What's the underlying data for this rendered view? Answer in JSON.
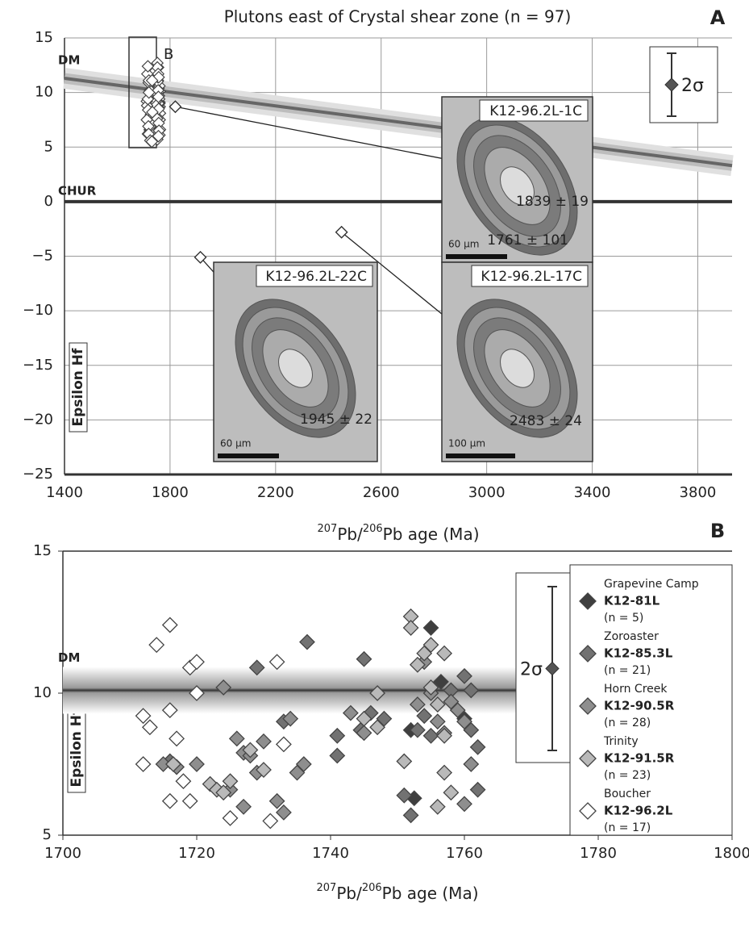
{
  "chart_data": [
    {
      "type": "scatter",
      "title": "Plutons east of Crystal shear zone (n = 97)",
      "panel": "A",
      "xlabel": [
        "207",
        "Pb/",
        "206",
        "Pb age (Ma)"
      ],
      "ylabel": "Epsilon Hf",
      "xlim": [
        1400,
        3930
      ],
      "ylim": [
        -25,
        15
      ],
      "xticks": [
        1400,
        1800,
        2200,
        2600,
        3000,
        3400,
        3800
      ],
      "yticks": [
        {
          "value": -25,
          "label": "−25"
        },
        {
          "value": -20,
          "label": "−20"
        },
        {
          "value": -15,
          "label": "−15"
        },
        {
          "value": -10,
          "label": "−10"
        },
        {
          "value": -5,
          "label": "−5"
        },
        0,
        5,
        10,
        15
      ],
      "grid": true,
      "x": [
        1820,
        1915,
        2450
      ],
      "values": [
        8.7,
        -5.1,
        -2.8
      ],
      "color": "#ffffff",
      "reference_lines": [
        {
          "label": "DM",
          "x": [
            1400,
            3930
          ],
          "y": [
            11.3,
            3.3
          ]
        },
        {
          "label": "CHUR",
          "x": [
            1400,
            3930
          ],
          "y": [
            0,
            0
          ]
        }
      ],
      "inset_box_label": "B",
      "error_bar_label": "2σ",
      "insets": [
        {
          "label": "K12-96.2L-1C",
          "ages": [
            "1839 ± 19",
            "1761 ± 101"
          ],
          "scale": "60 µm"
        },
        {
          "label": "K12-96.2L-22C",
          "ages": [
            "1945 ± 22"
          ],
          "scale": "60 µm"
        },
        {
          "label": "K12-96.2L-17C",
          "ages": [
            "2483 ± 24"
          ],
          "scale": "100 µm"
        }
      ]
    },
    {
      "type": "scatter",
      "panel": "B",
      "xlabel": [
        "207",
        "Pb/",
        "206",
        "Pb age (Ma)"
      ],
      "ylabel": "Epsilon Hf",
      "xlim": [
        1700,
        1800
      ],
      "ylim": [
        5,
        15
      ],
      "xticks": [
        1700,
        1720,
        1740,
        1760,
        1780,
        1800
      ],
      "yticks": [
        5,
        10,
        15
      ],
      "grid": false,
      "reference_lines": [
        {
          "label": "DM",
          "x": [
            1700,
            1769
          ],
          "y": [
            10.1,
            10.1
          ]
        }
      ],
      "error_bar_label": "2σ",
      "series": [
        {
          "name": "K12-81L",
          "group": "Grapevine Camp",
          "count": "(n = 5)",
          "color": "#3f3f3f",
          "x": [
            1755,
            1756.5,
            1760,
            1752,
            1752.5
          ],
          "values": [
            12.3,
            10.4,
            9.1,
            8.7,
            6.3
          ]
        },
        {
          "name": "K12-85.3L",
          "group": "Zoroaster",
          "count": "(n = 21)",
          "color": "#727272",
          "x": [
            1716,
            1729,
            1733,
            1736.5,
            1741,
            1741,
            1745,
            1744.5,
            1746,
            1748,
            1751,
            1752,
            1753,
            1754,
            1755,
            1758,
            1760,
            1761,
            1761,
            1762,
            1762
          ],
          "values": [
            7.6,
            10.9,
            9.0,
            11.8,
            8.5,
            7.8,
            11.2,
            8.7,
            9.3,
            9.1,
            6.4,
            5.7,
            8.7,
            9.2,
            8.5,
            10.1,
            10.6,
            10.1,
            8.7,
            8.1,
            6.6
          ]
        },
        {
          "name": "K12-90.5R",
          "group": "Horn Creek",
          "count": "(n = 28)",
          "color": "#8e8e8e",
          "x": [
            1715,
            1717,
            1720,
            1724,
            1725,
            1726,
            1727,
            1728,
            1727,
            1729,
            1730,
            1732,
            1733,
            1734,
            1735,
            1736,
            1743,
            1745,
            1753,
            1754,
            1755,
            1757,
            1758,
            1759,
            1760,
            1760,
            1761,
            1756
          ],
          "values": [
            7.5,
            7.4,
            7.5,
            10.2,
            6.6,
            8.4,
            7.9,
            7.8,
            6.0,
            7.2,
            8.3,
            6.2,
            5.8,
            9.1,
            7.2,
            7.5,
            9.3,
            8.6,
            9.6,
            11.1,
            10.0,
            8.6,
            9.7,
            9.4,
            6.1,
            9.0,
            7.5,
            9.0
          ]
        },
        {
          "name": "K12-91.5R",
          "group": "Trinity",
          "count": "(n = 23)",
          "color": "#b9b9b9",
          "x": [
            1716.5,
            1722,
            1723,
            1724,
            1725,
            1728,
            1730,
            1745,
            1747,
            1747,
            1751,
            1752,
            1752,
            1753,
            1754,
            1755,
            1755,
            1756,
            1757,
            1757,
            1757,
            1758,
            1756
          ],
          "values": [
            7.5,
            6.8,
            6.6,
            6.5,
            6.9,
            8.0,
            7.3,
            9.1,
            10.0,
            8.8,
            7.6,
            12.7,
            12.3,
            11.0,
            11.4,
            10.2,
            11.7,
            9.6,
            7.2,
            11.4,
            8.5,
            6.5,
            6.0
          ]
        },
        {
          "name": "K12-96.2L",
          "group": "Boucher",
          "count": "(n = 17)",
          "color": "#ffffff",
          "x": [
            1712,
            1712,
            1713,
            1714,
            1716,
            1716,
            1716,
            1717,
            1718,
            1719,
            1719,
            1720,
            1720,
            1725,
            1731,
            1732,
            1733
          ],
          "values": [
            9.2,
            7.5,
            8.8,
            11.7,
            12.4,
            9.4,
            6.2,
            8.4,
            6.9,
            10.9,
            6.2,
            11.1,
            10.0,
            5.6,
            5.5,
            11.1,
            8.2
          ]
        }
      ]
    }
  ]
}
